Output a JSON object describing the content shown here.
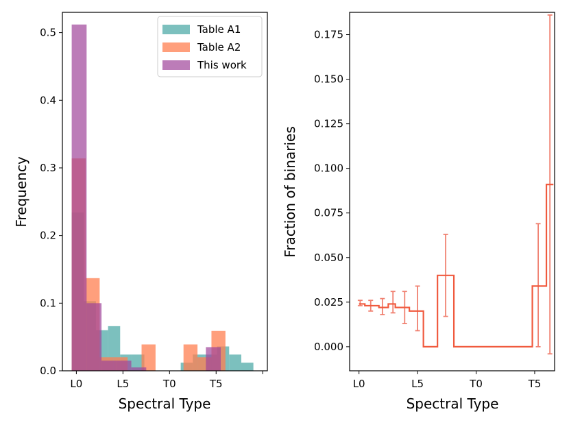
{
  "chart_data": [
    {
      "type": "bar",
      "subtype": "histogram-overlay",
      "title": "",
      "xlabel": "Spectral Type",
      "ylabel": "Frequency",
      "x_tick_labels": [
        {
          "label": "L0",
          "value": 0
        },
        {
          "label": "L5",
          "value": 5
        },
        {
          "label": "T0",
          "value": 10
        },
        {
          "label": "T5",
          "value": 15
        },
        {
          "label": "",
          "value": 20
        }
      ],
      "xlim": [
        -1.5,
        20.5
      ],
      "ylim": [
        0,
        0.53
      ],
      "y_ticks": [
        {
          "label": "0.0",
          "value": 0.0
        },
        {
          "label": "0.1",
          "value": 0.1
        },
        {
          "label": "0.2",
          "value": 0.2
        },
        {
          "label": "0.3",
          "value": 0.3
        },
        {
          "label": "0.4",
          "value": 0.4
        },
        {
          "label": "0.5",
          "value": 0.5
        }
      ],
      "legend": {
        "position": "top-right"
      },
      "series": [
        {
          "name": "Table A1",
          "color": "#45a5a2",
          "opacity": 0.7,
          "bin_width": 1.3,
          "bins": [
            {
              "x0": -0.5,
              "value": 0.234
            },
            {
              "x0": 0.8,
              "value": 0.103
            },
            {
              "x0": 2.1,
              "value": 0.06
            },
            {
              "x0": 3.4,
              "value": 0.066
            },
            {
              "x0": 4.7,
              "value": 0.024
            },
            {
              "x0": 6.0,
              "value": 0.024
            },
            {
              "x0": 7.3,
              "value": 0.0
            },
            {
              "x0": 8.6,
              "value": 0.0
            },
            {
              "x0": 9.9,
              "value": 0.0
            },
            {
              "x0": 11.2,
              "value": 0.012
            },
            {
              "x0": 12.5,
              "value": 0.024
            },
            {
              "x0": 13.8,
              "value": 0.024
            },
            {
              "x0": 15.1,
              "value": 0.036
            },
            {
              "x0": 16.4,
              "value": 0.024
            },
            {
              "x0": 17.7,
              "value": 0.012
            }
          ]
        },
        {
          "name": "Table A2",
          "color": "#ff7f50",
          "opacity": 0.75,
          "bin_width": 1.5,
          "bins": [
            {
              "x0": -0.5,
              "value": 0.314
            },
            {
              "x0": 1.0,
              "value": 0.137
            },
            {
              "x0": 2.5,
              "value": 0.02
            },
            {
              "x0": 4.0,
              "value": 0.02
            },
            {
              "x0": 5.5,
              "value": 0.0
            },
            {
              "x0": 7.0,
              "value": 0.039
            },
            {
              "x0": 8.5,
              "value": 0.0
            },
            {
              "x0": 10.0,
              "value": 0.0
            },
            {
              "x0": 11.5,
              "value": 0.039
            },
            {
              "x0": 13.0,
              "value": 0.02
            },
            {
              "x0": 14.5,
              "value": 0.059
            }
          ]
        },
        {
          "name": "This work",
          "color": "#a0449a",
          "opacity": 0.7,
          "bin_width": 1.6,
          "bins": [
            {
              "x0": -0.5,
              "value": 0.512
            },
            {
              "x0": 1.1,
              "value": 0.1
            },
            {
              "x0": 2.7,
              "value": 0.015
            },
            {
              "x0": 4.3,
              "value": 0.015
            },
            {
              "x0": 5.9,
              "value": 0.005
            },
            {
              "x0": 7.5,
              "value": 0.0
            },
            {
              "x0": 9.1,
              "value": 0.0
            },
            {
              "x0": 10.7,
              "value": 0.0
            },
            {
              "x0": 12.3,
              "value": 0.0
            },
            {
              "x0": 13.9,
              "value": 0.035
            }
          ]
        }
      ]
    },
    {
      "type": "line",
      "subtype": "step-with-errorbars",
      "title": "",
      "xlabel": "Spectral Type",
      "ylabel": "Fraction of binaries",
      "color": "#f05a3e",
      "errorbar_color": "#f08070",
      "x_tick_labels": [
        {
          "label": "L0",
          "value": 0
        },
        {
          "label": "L5",
          "value": 5
        },
        {
          "label": "T0",
          "value": 10
        },
        {
          "label": "T5",
          "value": 15
        }
      ],
      "xlim": [
        -0.8,
        16.7
      ],
      "ylim": [
        -0.0135,
        0.1875
      ],
      "y_ticks": [
        {
          "label": "0.000",
          "value": 0.0
        },
        {
          "label": "0.025",
          "value": 0.025
        },
        {
          "label": "0.050",
          "value": 0.05
        },
        {
          "label": "0.075",
          "value": 0.075
        },
        {
          "label": "0.100",
          "value": 0.1
        },
        {
          "label": "0.125",
          "value": 0.125
        },
        {
          "label": "0.150",
          "value": 0.15
        },
        {
          "label": "0.175",
          "value": 0.175
        }
      ],
      "steps": [
        {
          "x0": 0.0,
          "x1": 0.5,
          "y": 0.024
        },
        {
          "x0": 0.5,
          "x1": 1.7,
          "y": 0.023
        },
        {
          "x0": 1.7,
          "x1": 2.5,
          "y": 0.022
        },
        {
          "x0": 2.5,
          "x1": 3.1,
          "y": 0.024
        },
        {
          "x0": 3.1,
          "x1": 4.3,
          "y": 0.022
        },
        {
          "x0": 4.3,
          "x1": 5.5,
          "y": 0.02
        },
        {
          "x0": 5.5,
          "x1": 6.7,
          "y": 0.0
        },
        {
          "x0": 6.7,
          "x1": 8.1,
          "y": 0.04
        },
        {
          "x0": 8.1,
          "x1": 14.8,
          "y": 0.0
        },
        {
          "x0": 14.8,
          "x1": 16.0,
          "y": 0.034
        },
        {
          "x0": 16.0,
          "x1": 16.6,
          "y": 0.091
        }
      ],
      "errorbars": [
        {
          "x": 0.1,
          "y": 0.024,
          "low": 0.023,
          "high": 0.026
        },
        {
          "x": 1.0,
          "y": 0.023,
          "low": 0.02,
          "high": 0.026
        },
        {
          "x": 2.0,
          "y": 0.022,
          "low": 0.018,
          "high": 0.027
        },
        {
          "x": 2.9,
          "y": 0.024,
          "low": 0.019,
          "high": 0.031
        },
        {
          "x": 3.9,
          "y": 0.022,
          "low": 0.013,
          "high": 0.031
        },
        {
          "x": 5.0,
          "y": 0.02,
          "low": 0.009,
          "high": 0.034
        },
        {
          "x": 7.4,
          "y": 0.04,
          "low": 0.017,
          "high": 0.063
        },
        {
          "x": 15.3,
          "y": 0.034,
          "low": 0.0,
          "high": 0.069
        },
        {
          "x": 16.3,
          "y": 0.091,
          "low": -0.004,
          "high": 0.186
        }
      ]
    }
  ]
}
